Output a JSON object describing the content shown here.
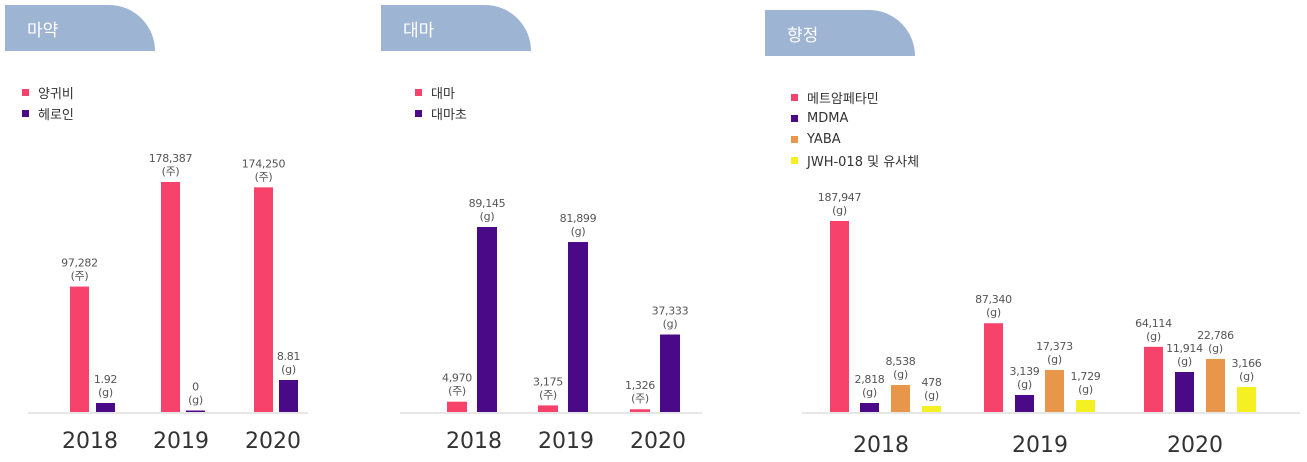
{
  "chart_data": [
    {
      "type": "bar",
      "title": "마약",
      "categories": [
        "2018",
        "2019",
        "2020"
      ],
      "series": [
        {
          "name": "양귀비",
          "color": "#f7436b",
          "values": [
            97282,
            178387,
            174250
          ],
          "labels": [
            "97,282",
            "178,387",
            "174,250"
          ],
          "unit": "(주)"
        },
        {
          "name": "헤로인",
          "color": "#4a0987",
          "values": [
            1.92,
            0,
            8.81
          ],
          "labels": [
            "1.92",
            "0",
            "8.81"
          ],
          "unit": "(g)"
        }
      ]
    },
    {
      "type": "bar",
      "title": "대마",
      "categories": [
        "2018",
        "2019",
        "2020"
      ],
      "series": [
        {
          "name": "대마",
          "color": "#f7436b",
          "values": [
            4970,
            3175,
            1326
          ],
          "labels": [
            "4,970",
            "3,175",
            "1,326"
          ],
          "unit": "(주)"
        },
        {
          "name": "대마초",
          "color": "#4a0987",
          "values": [
            89145,
            81899,
            37333
          ],
          "labels": [
            "89,145",
            "81,899",
            "37,333"
          ],
          "unit": "(g)"
        }
      ]
    },
    {
      "type": "bar",
      "title": "향정",
      "categories": [
        "2018",
        "2019",
        "2020"
      ],
      "series": [
        {
          "name": "메트암페타민",
          "color": "#f7436b",
          "values": [
            187947,
            87340,
            64114
          ],
          "labels": [
            "187,947",
            "87,340",
            "64,114"
          ],
          "unit": "(g)"
        },
        {
          "name": "MDMA",
          "color": "#4a0987",
          "values": [
            2818,
            3139,
            11914
          ],
          "labels": [
            "2,818",
            "3,139",
            "11,914"
          ],
          "unit": "(g)"
        },
        {
          "name": "YABA",
          "color": "#e8974a",
          "values": [
            8538,
            17373,
            22786
          ],
          "labels": [
            "8,538",
            "17,373",
            "22,786"
          ],
          "unit": "(g)"
        },
        {
          "name": "JWH-018 및 유사체",
          "color": "#f4f022",
          "values": [
            478,
            1729,
            3166
          ],
          "labels": [
            "478",
            "1,729",
            "3,166"
          ],
          "unit": "(g)"
        }
      ]
    }
  ]
}
